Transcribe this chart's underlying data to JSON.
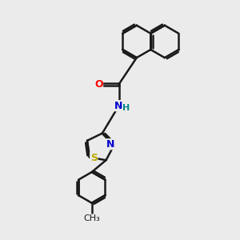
{
  "background_color": "#ebebeb",
  "bond_color": "#1a1a1a",
  "bond_width": 1.8,
  "atom_colors": {
    "O": "#ff0000",
    "N": "#0000cc",
    "S": "#bbaa00",
    "H": "#008888",
    "C": "#1a1a1a"
  },
  "font_size": 9,
  "figsize": [
    3.0,
    3.0
  ],
  "dpi": 100
}
